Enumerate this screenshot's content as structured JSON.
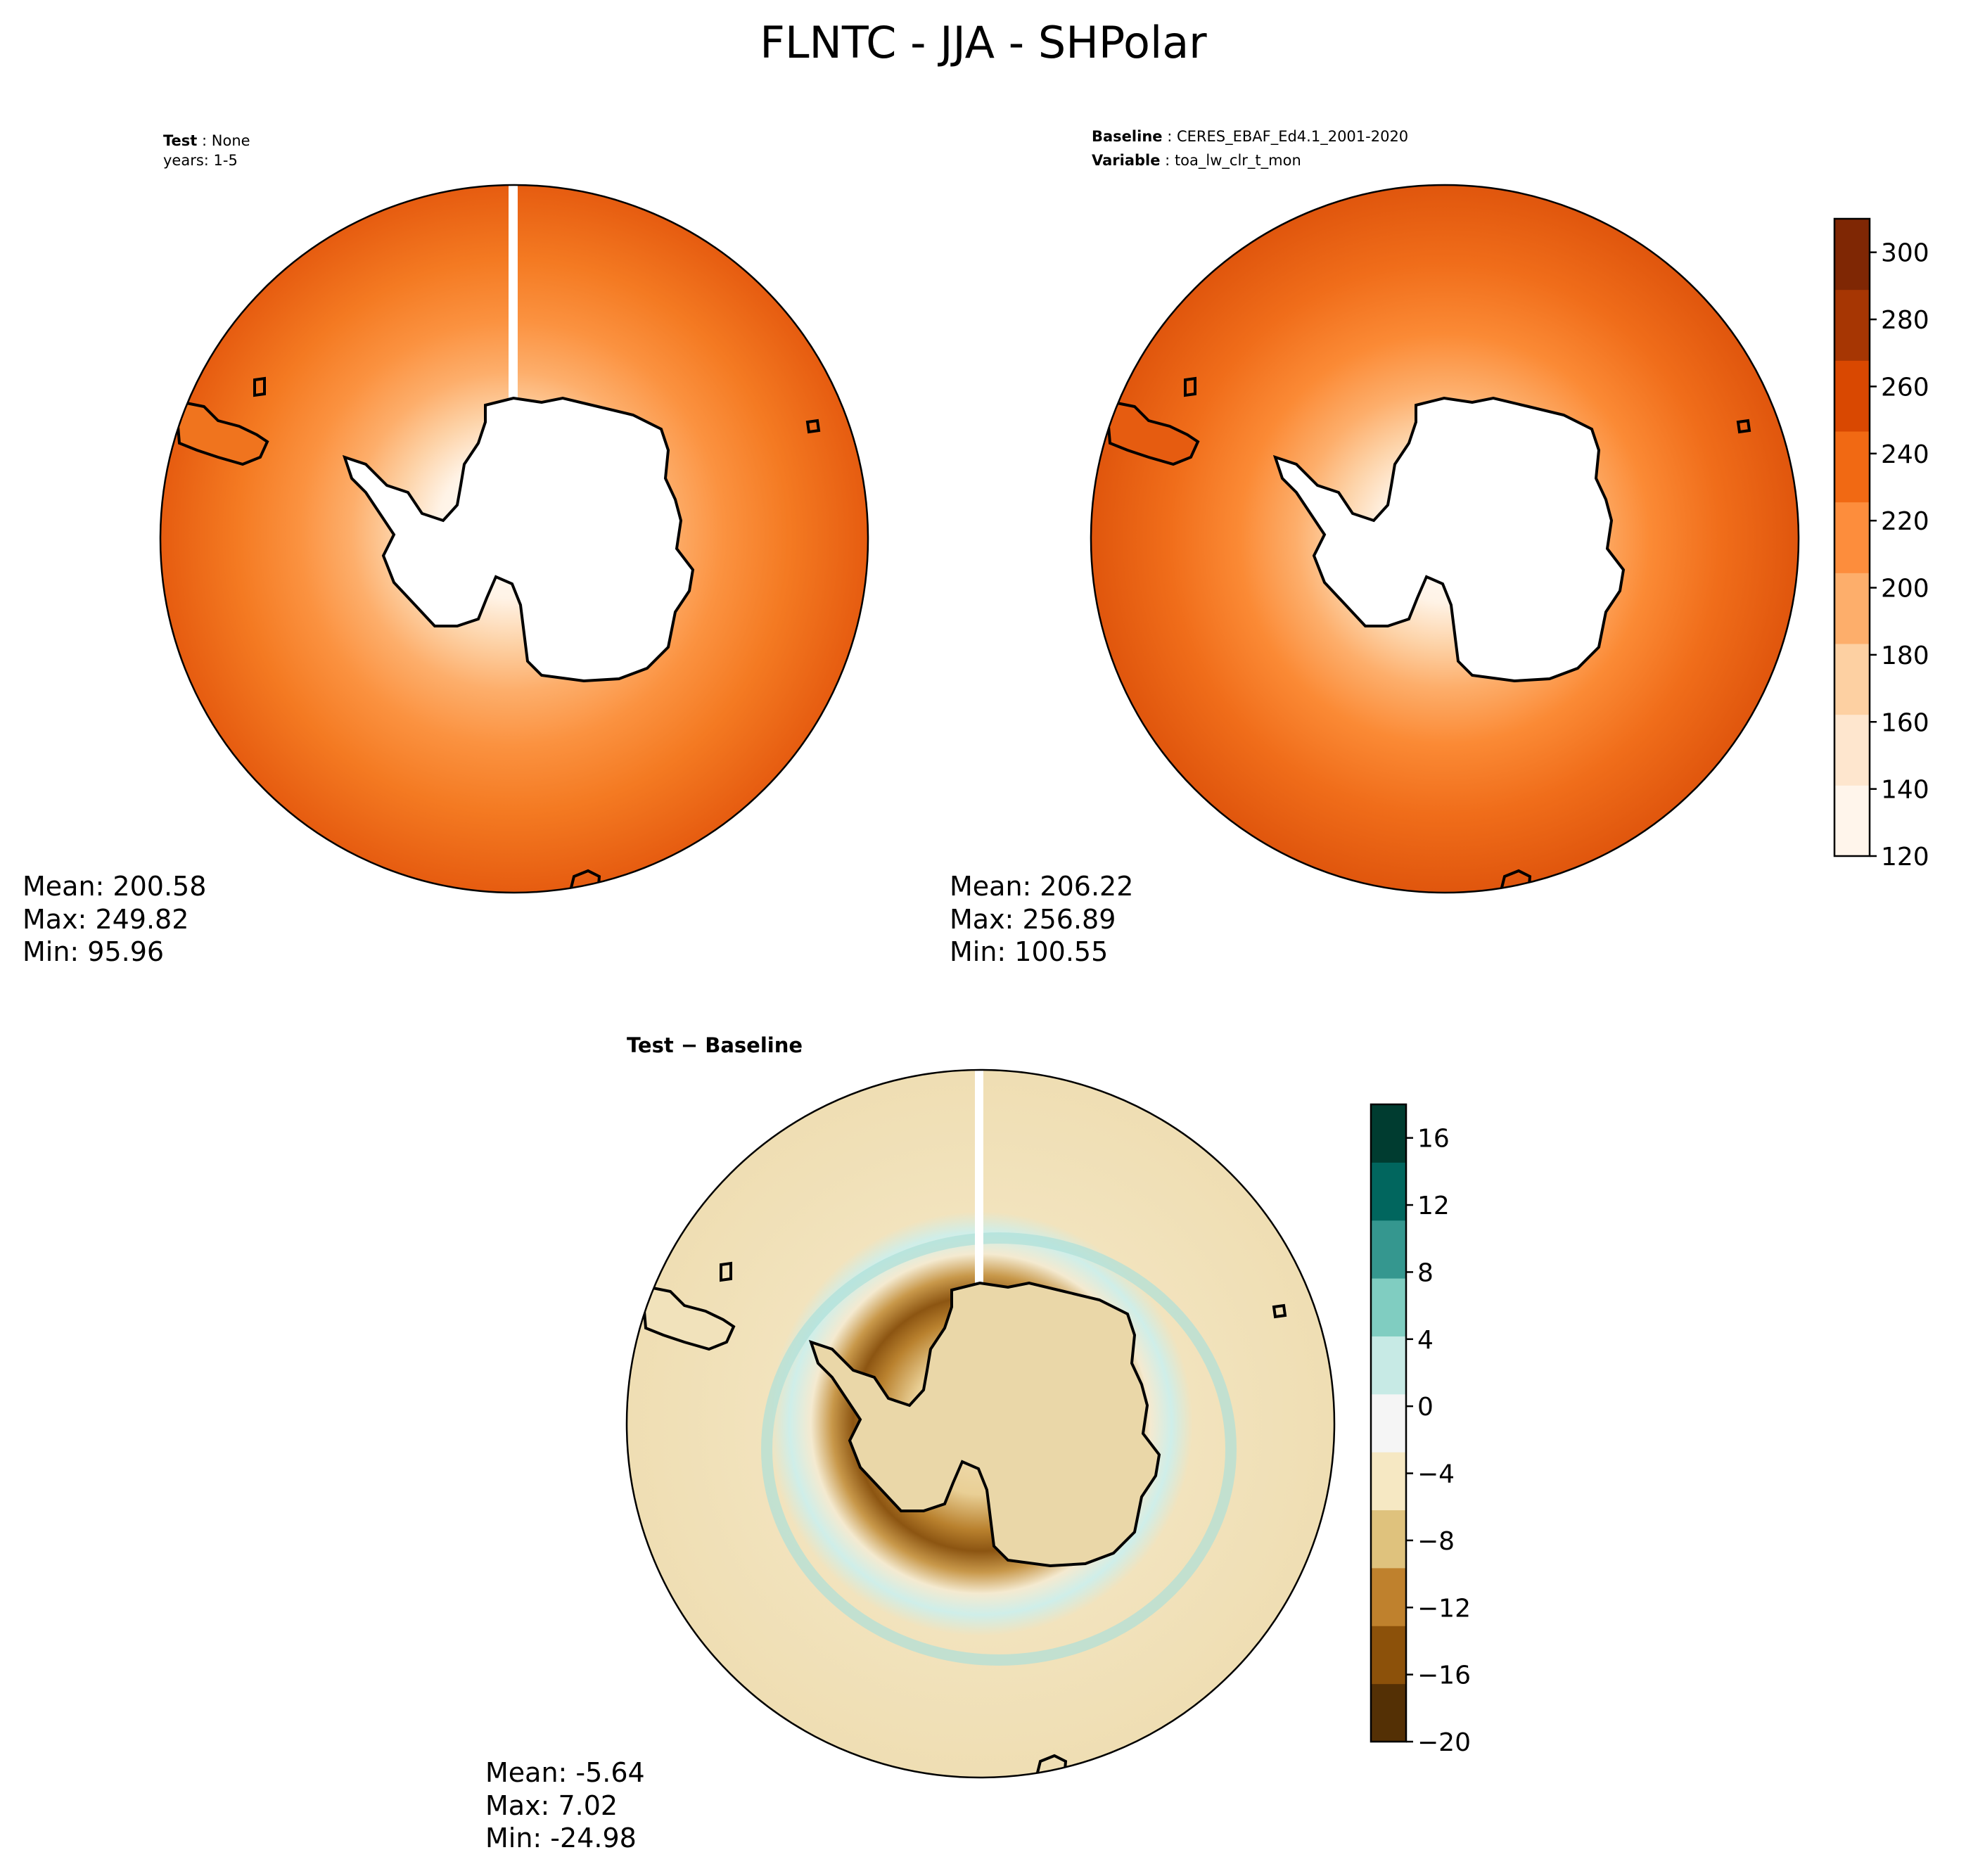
{
  "title": "FLNTC - JJA - SHPolar",
  "panels": {
    "test": {
      "label_key": "Test",
      "label_value": "None",
      "years": "years: 1-5",
      "stats": {
        "mean": "Mean: 200.58",
        "max": "Max: 249.82",
        "min": "Min: 95.96"
      }
    },
    "baseline": {
      "label_key": "Baseline",
      "label_value": "CERES_EBAF_Ed4.1_2001-2020",
      "variable_key": "Variable",
      "variable_value": "toa_lw_clr_t_mon",
      "stats": {
        "mean": "Mean: 206.22",
        "max": "Max: 256.89",
        "min": "Min: 100.55"
      }
    },
    "diff": {
      "label": "Test − Baseline",
      "stats": {
        "mean": "Mean: -5.64",
        "max": "Max:  7.02",
        "min": "Min: -24.98"
      }
    }
  },
  "colorbars": {
    "main": {
      "ticks": [
        "120",
        "140",
        "160",
        "180",
        "200",
        "220",
        "240",
        "260",
        "280",
        "300"
      ],
      "tick_values": [
        120,
        140,
        160,
        180,
        200,
        220,
        240,
        260,
        280,
        300
      ],
      "range": [
        120,
        310
      ],
      "colors": [
        "#fff5eb",
        "#fee6ce",
        "#fdd0a2",
        "#fdae6b",
        "#fd8d3c",
        "#f16913",
        "#d94801",
        "#a63603",
        "#7f2704"
      ]
    },
    "diff": {
      "ticks": [
        "16",
        "12",
        "8",
        "4",
        "0",
        "−4",
        "−8",
        "−12",
        "−16",
        "−20"
      ],
      "tick_values": [
        16,
        12,
        8,
        4,
        0,
        -4,
        -8,
        -12,
        -16,
        -20
      ],
      "range": [
        -20,
        18
      ],
      "colors": [
        "#543005",
        "#8c510a",
        "#bf812d",
        "#dfc27d",
        "#f6e8c3",
        "#f5f5f5",
        "#c7eae5",
        "#80cdc1",
        "#35978f",
        "#01665e",
        "#003c30"
      ]
    }
  }
}
